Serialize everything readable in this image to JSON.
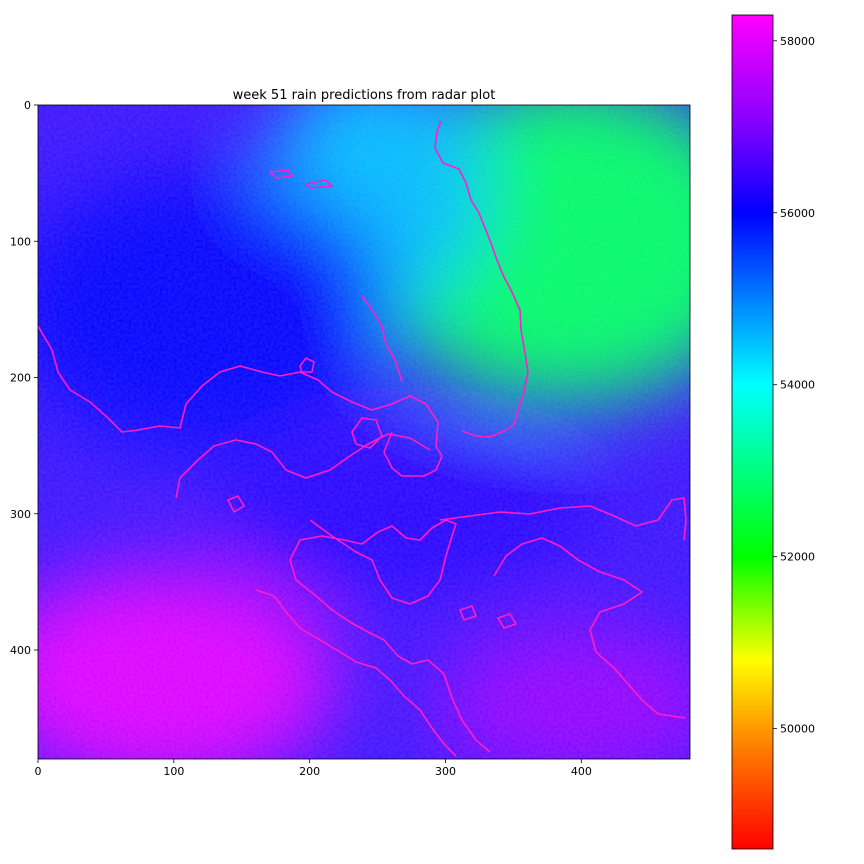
{
  "chart_data": {
    "type": "heatmap",
    "title": "week 51 rain predictions from radar plot",
    "xlabel": "",
    "ylabel": "",
    "image_extent": {
      "x": [
        0,
        480
      ],
      "y": [
        0,
        480
      ]
    },
    "x_ticks": [
      0,
      100,
      200,
      300,
      400
    ],
    "y_ticks": [
      0,
      100,
      200,
      300,
      400
    ],
    "y_axis_inverted": true,
    "colormap": "gist_rainbow-like (red - yellow - green - cyan - blue - magenta)",
    "colorbar": {
      "range": [
        48600,
        58300
      ],
      "ticks": [
        50000,
        52000,
        54000,
        56000,
        58000
      ],
      "stops": [
        {
          "value": 48600,
          "color": "#ff0000"
        },
        {
          "value": 49800,
          "color": "#ff8000"
        },
        {
          "value": 50800,
          "color": "#ffff00"
        },
        {
          "value": 52000,
          "color": "#00ff00"
        },
        {
          "value": 54000,
          "color": "#00ffff"
        },
        {
          "value": 56000,
          "color": "#0000ff"
        },
        {
          "value": 57000,
          "color": "#8000ff"
        },
        {
          "value": 58300,
          "color": "#ff00ff"
        }
      ]
    },
    "field_summary": [
      {
        "region": "top-right (x 300-480, y 0-200)",
        "approx_value": 52800
      },
      {
        "region": "top-center (x 200-300, y 0-150)",
        "approx_value": 54500
      },
      {
        "region": "upper-left band (x 0-250, y 50-250)",
        "approx_value": 56000
      },
      {
        "region": "center (x 150-400, y 250-350)",
        "approx_value": 56300
      },
      {
        "region": "bottom-left (x 0-250, y 350-480)",
        "approx_value": 58000
      },
      {
        "region": "bottom-right (x 300-480, y 380-480)",
        "approx_value": 57200
      }
    ],
    "overlay": "coastline outline drawn in magenta"
  }
}
